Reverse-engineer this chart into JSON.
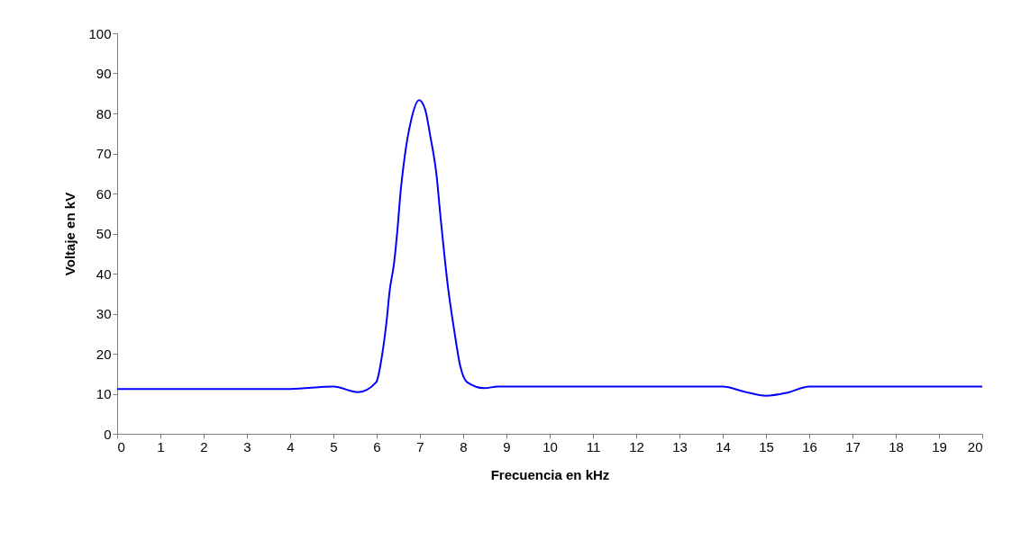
{
  "chart_data": {
    "type": "line",
    "xlabel": "Frecuencia en kHz",
    "ylabel": "Voltaje en kV",
    "xlim": [
      0,
      20
    ],
    "xticks": [
      0,
      1,
      2,
      3,
      4,
      5,
      6,
      7,
      8,
      9,
      10,
      11,
      12,
      13,
      14,
      15,
      16,
      17,
      18,
      19,
      20
    ],
    "ylim": [
      0,
      100
    ],
    "yticks": [
      0,
      10,
      20,
      30,
      40,
      50,
      60,
      70,
      80,
      90,
      100
    ],
    "grid": false,
    "marker": "none",
    "line_style": "solid",
    "series": [
      {
        "color": "#0000ff",
        "x": [
          0,
          1,
          2,
          3,
          4,
          5,
          5.57,
          5.99,
          6.12,
          6.23,
          6.3,
          6.4,
          6.49,
          6.54,
          6.65,
          6.79,
          6.98,
          7.12,
          7.24,
          7.38,
          7.48,
          7.65,
          7.79,
          7.93,
          8.09,
          8.49,
          8.8,
          10,
          12,
          14,
          14.5,
          15,
          15.5,
          16,
          18,
          20
        ],
        "values": [
          11.2,
          11.2,
          11.2,
          11.2,
          11.2,
          11.8,
          10.4,
          12.9,
          19.3,
          28.2,
          35.7,
          42.5,
          52.2,
          58.9,
          69.4,
          78,
          83.3,
          81,
          74.3,
          64.9,
          53.7,
          36.5,
          26,
          17,
          12.9,
          11.4,
          11.8,
          11.8,
          11.8,
          11.8,
          10.5,
          9.5,
          10.3,
          11.8,
          11.8,
          11.8
        ]
      }
    ]
  }
}
